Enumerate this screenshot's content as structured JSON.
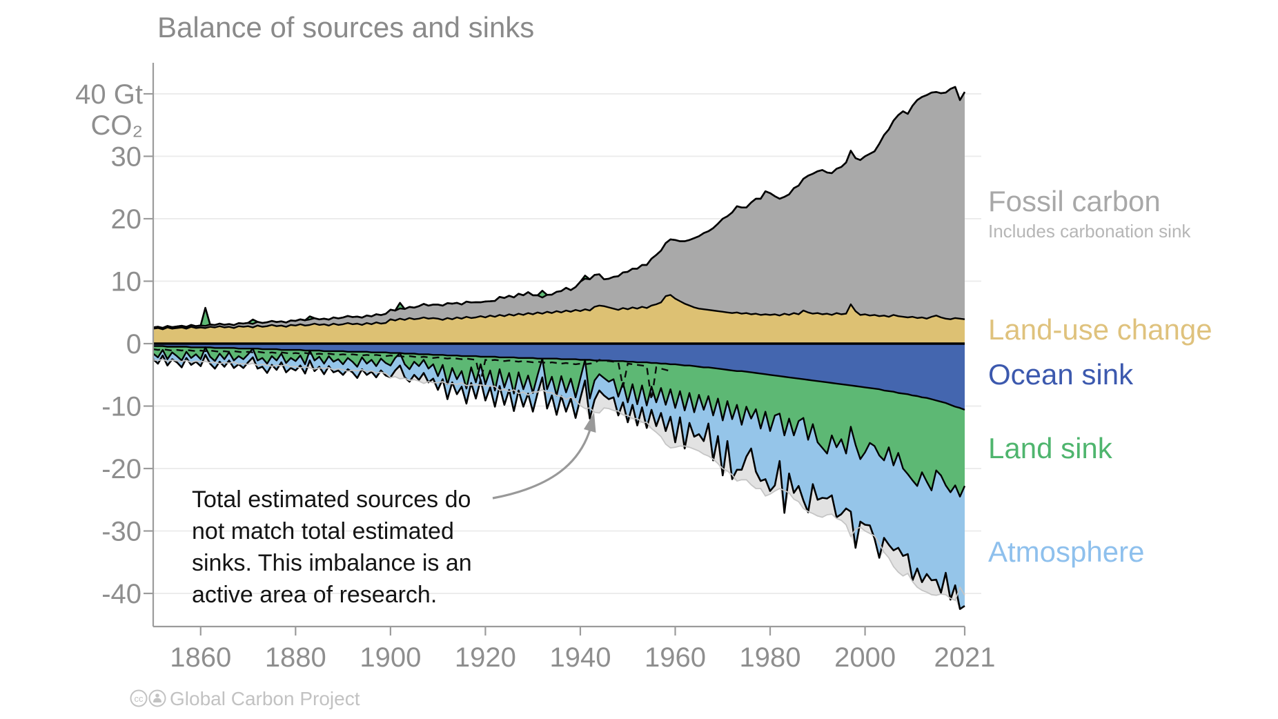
{
  "chart_data": {
    "type": "area",
    "title": "Balance of sources and sinks",
    "footer": "Global Carbon Project",
    "footer_license_icons": [
      "cc-icon",
      "by-person-icon"
    ],
    "x_axis": {
      "start_year": 1850,
      "end_year": 2021,
      "ticks": [
        "1860",
        "1880",
        "1900",
        "1920",
        "1940",
        "1960",
        "1980",
        "2000",
        "2021"
      ],
      "tick_years": [
        1860,
        1880,
        1900,
        1920,
        1940,
        1960,
        1980,
        2000,
        2021
      ]
    },
    "y_axis": {
      "unit_top_label": "40 Gt",
      "unit_bottom_label": "CO₂",
      "ticks": [
        40,
        30,
        20,
        10,
        0,
        -10,
        -20,
        -30,
        -40
      ],
      "range_shown": [
        -45,
        45
      ],
      "grid": true
    },
    "annotation": {
      "lines": [
        "Total estimated sources do",
        "not match total estimated",
        "sinks. This imbalance is an",
        "active area of research."
      ]
    },
    "legend": {
      "fossil_label": "Fossil carbon",
      "fossil_sub": "Includes carbonation sink",
      "land_use_label": "Land-use change",
      "ocean_label": "Ocean sink",
      "land_label": "Land sink",
      "atmosphere_label": "Atmosphere"
    },
    "colors": {
      "fossil": "#a9a9a9",
      "land_use": "#ddc173",
      "ocean": "#4466af",
      "land": "#5db874",
      "atmosphere": "#95c5e9",
      "imbalance": "#e2e2e2",
      "outline": "#000000",
      "zero_line": "#000000",
      "source_mirror_line": "#c5c5c5",
      "grid": "#ececec",
      "axis": "#9b9b9b",
      "tick_label": "#8e8e8e",
      "title": "#8a8a8a",
      "annotation": "#141414",
      "arrow": "#999999",
      "footer": "#c2c2c2",
      "legend_fossil": "#a8a8a8",
      "legend_sub": "#b6b6b6",
      "legend_land_use": "#dfc27d",
      "legend_ocean": "#3c59ae",
      "legend_land": "#4fb56e",
      "legend_atmosphere": "#8ec0ed"
    },
    "notes": "Sources plotted above zero (land-use change, fossil carbon); sinks below zero (ocean, land, atmosphere), all GtCO2 per year. Negative land values are land-source years drawn as green spikes above the stack. Dashed line = atmospheric growth from ice cores, pre-1959. Thin pale line mirrors total sources; pale grey fill = budget imbalance.",
    "series": {
      "fossil": [
        0.2,
        0.21,
        0.22,
        0.23,
        0.24,
        0.25,
        0.26,
        0.28,
        0.29,
        0.3,
        0.32,
        0.34,
        0.36,
        0.38,
        0.4,
        0.42,
        0.44,
        0.46,
        0.48,
        0.51,
        0.53,
        0.56,
        0.59,
        0.62,
        0.63,
        0.64,
        0.66,
        0.67,
        0.68,
        0.71,
        0.75,
        0.79,
        0.83,
        0.87,
        0.88,
        0.88,
        0.9,
        0.95,
        1.0,
        1.04,
        1.09,
        1.13,
        1.15,
        1.13,
        1.17,
        1.21,
        1.26,
        1.31,
        1.38,
        1.47,
        1.54,
        1.59,
        1.63,
        1.75,
        1.78,
        1.87,
        2.0,
        2.16,
        2.09,
        2.15,
        2.25,
        2.29,
        2.39,
        2.5,
        2.33,
        2.27,
        2.43,
        2.5,
        2.43,
        2.22,
        2.55,
        2.28,
        2.54,
        2.88,
        2.92,
        2.97,
        2.9,
        3.19,
        3.15,
        3.34,
        3.05,
        2.75,
        2.58,
        2.71,
        2.95,
        3.1,
        3.42,
        3.64,
        3.47,
        3.66,
        4.7,
        4.9,
        5.0,
        5.1,
        5.0,
        4.3,
        4.6,
        5.1,
        5.4,
        5.7,
        6.0,
        6.2,
        6.4,
        6.7,
        6.9,
        7.5,
        7.9,
        8.3,
        8.5,
        8.9,
        9.4,
        9.6,
        10.0,
        10.5,
        11.1,
        11.6,
        12.2,
        12.6,
        13.2,
        14.0,
        14.9,
        15.4,
        16.1,
        17.0,
        17.0,
        16.9,
        17.9,
        18.4,
        18.6,
        19.7,
        19.5,
        18.9,
        18.7,
        18.7,
        19.3,
        20.0,
        20.6,
        21.1,
        21.9,
        22.4,
        22.7,
        23.1,
        22.6,
        22.7,
        23.1,
        23.6,
        24.2,
        24.6,
        24.5,
        24.8,
        25.3,
        25.9,
        26.2,
        27.6,
        28.9,
        30.0,
        31.1,
        32.2,
        32.9,
        32.6,
        33.8,
        34.9,
        35.3,
        35.8,
        35.9,
        35.8,
        35.9,
        36.2,
        36.9,
        37.0,
        35.0,
        36.4
      ],
      "land_use": [
        2.4,
        2.5,
        2.3,
        2.6,
        2.4,
        2.5,
        2.6,
        2.4,
        2.7,
        2.5,
        2.6,
        2.5,
        2.7,
        2.6,
        2.8,
        2.6,
        2.7,
        2.5,
        2.8,
        2.7,
        2.8,
        2.6,
        2.9,
        2.7,
        2.8,
        3.0,
        2.8,
        2.9,
        2.7,
        3.0,
        2.9,
        3.1,
        2.9,
        3.0,
        3.2,
        3.0,
        3.1,
        2.9,
        3.2,
        3.0,
        3.1,
        3.3,
        3.1,
        3.2,
        3.0,
        3.3,
        3.1,
        3.4,
        3.2,
        3.3,
        3.9,
        3.7,
        4.0,
        3.8,
        4.1,
        3.9,
        4.0,
        4.2,
        4.0,
        4.1,
        4.0,
        3.8,
        4.1,
        3.9,
        4.2,
        4.0,
        4.3,
        4.1,
        4.2,
        4.4,
        4.2,
        4.5,
        4.3,
        4.6,
        4.4,
        4.7,
        4.5,
        4.8,
        4.6,
        4.9,
        4.7,
        5.0,
        4.8,
        5.1,
        4.9,
        5.2,
        5.0,
        5.3,
        5.1,
        5.4,
        5.2,
        5.5,
        5.3,
        5.9,
        6.1,
        6.0,
        5.8,
        5.6,
        5.4,
        5.7,
        5.5,
        5.8,
        5.6,
        5.9,
        5.7,
        6.1,
        6.3,
        6.6,
        7.6,
        7.8,
        7.2,
        6.8,
        6.4,
        6.1,
        5.8,
        5.6,
        5.5,
        5.4,
        5.3,
        5.2,
        5.1,
        5.0,
        4.9,
        5.0,
        4.8,
        4.9,
        4.7,
        4.8,
        4.6,
        4.7,
        4.6,
        4.7,
        4.5,
        4.8,
        4.6,
        4.9,
        4.7,
        5.3,
        5.0,
        4.8,
        4.9,
        4.7,
        4.8,
        4.6,
        4.9,
        4.7,
        4.8,
        6.3,
        5.2,
        4.6,
        4.7,
        4.5,
        4.6,
        4.4,
        4.5,
        4.3,
        4.6,
        4.4,
        4.3,
        4.2,
        4.3,
        4.1,
        4.2,
        4.0,
        4.3,
        4.5,
        4.2,
        4.0,
        3.9,
        4.1,
        4.0,
        3.9
      ],
      "ocean": [
        0.4,
        0.4,
        0.4,
        0.5,
        0.5,
        0.5,
        0.5,
        0.5,
        0.6,
        0.6,
        0.6,
        0.6,
        0.6,
        0.7,
        0.7,
        0.7,
        0.7,
        0.7,
        0.8,
        0.8,
        0.8,
        0.8,
        0.8,
        0.9,
        0.9,
        0.9,
        0.9,
        1.0,
        1.0,
        1.0,
        1.0,
        1.0,
        1.1,
        1.1,
        1.1,
        1.1,
        1.2,
        1.2,
        1.2,
        1.2,
        1.2,
        1.3,
        1.3,
        1.3,
        1.3,
        1.3,
        1.4,
        1.4,
        1.4,
        1.4,
        1.5,
        1.5,
        1.5,
        1.6,
        1.6,
        1.6,
        1.7,
        1.7,
        1.7,
        1.8,
        1.8,
        1.8,
        1.9,
        1.9,
        1.9,
        2.0,
        2.0,
        2.0,
        2.0,
        2.1,
        2.1,
        2.1,
        2.1,
        2.2,
        2.2,
        2.2,
        2.2,
        2.3,
        2.3,
        2.3,
        2.3,
        2.4,
        2.4,
        2.4,
        2.4,
        2.4,
        2.5,
        2.5,
        2.5,
        2.5,
        2.6,
        2.6,
        2.6,
        2.7,
        2.7,
        2.7,
        2.7,
        2.8,
        2.8,
        2.8,
        2.9,
        2.9,
        3.0,
        3.0,
        3.0,
        3.1,
        3.1,
        3.2,
        3.2,
        3.3,
        3.3,
        3.4,
        3.5,
        3.5,
        3.6,
        3.7,
        3.8,
        3.8,
        3.9,
        4.0,
        4.1,
        4.2,
        4.3,
        4.4,
        4.4,
        4.5,
        4.6,
        4.7,
        4.8,
        4.9,
        5.0,
        5.1,
        5.2,
        5.3,
        5.4,
        5.5,
        5.6,
        5.7,
        5.8,
        5.9,
        6.0,
        6.1,
        6.2,
        6.3,
        6.4,
        6.5,
        6.6,
        6.7,
        6.8,
        6.9,
        7.0,
        7.1,
        7.2,
        7.3,
        7.5,
        7.6,
        7.7,
        7.9,
        8.0,
        8.1,
        8.3,
        8.4,
        8.6,
        8.7,
        8.9,
        9.1,
        9.3,
        9.5,
        9.8,
        10.1,
        10.3,
        10.6
      ],
      "land": [
        1.2,
        1.8,
        0.6,
        2.0,
        0.9,
        1.5,
        2.2,
        0.8,
        1.7,
        1.1,
        1.9,
        -2.9,
        1.5,
        2.1,
        0.9,
        1.8,
        0.7,
        2.0,
        1.2,
        1.7,
        0.9,
        -0.7,
        1.9,
        1.4,
        2.3,
        1.1,
        1.8,
        0.6,
        2.1,
        1.3,
        1.8,
        0.9,
        2.2,
        -0.5,
        1.6,
        1.0,
        2.0,
        0.8,
        1.7,
        1.3,
        2.1,
        1.0,
        1.6,
        2.4,
        0.9,
        1.9,
        1.2,
        2.2,
        1.0,
        1.7,
        2.0,
        0.8,
        -0.9,
        1.7,
        2.5,
        1.3,
        1.9,
        0.9,
        2.3,
        1.5,
        3.4,
        1.6,
        4.6,
        2.0,
        3.8,
        2.4,
        5.2,
        1.8,
        4.2,
        1.2,
        4.4,
        2.2,
        5.4,
        1.9,
        4.8,
        2.5,
        5.8,
        2.3,
        5.0,
        2.8,
        5.6,
        2.6,
        -1.1,
        4.9,
        2.9,
        5.9,
        2.7,
        5.3,
        3.1,
        6.1,
        3.0,
        -0.5,
        6.2,
        3.2,
        2.2,
        2.8,
        3.4,
        2.9,
        5.7,
        3.5,
        6.5,
        3.6,
        6.7,
        3.7,
        6.9,
        3.8,
        6.3,
        3.9,
        6.6,
        4.0,
        7.0,
        4.2,
        7.2,
        4.4,
        7.4,
        4.5,
        6.8,
        4.6,
        7.6,
        4.8,
        8.2,
        5.0,
        7.8,
        5.4,
        8.6,
        5.6,
        7.4,
        5.8,
        8.8,
        6.0,
        9.0,
        6.4,
        6.0,
        9.4,
        6.6,
        9.2,
        6.8,
        6.2,
        9.6,
        7.0,
        9.8,
        10.6,
        11.4,
        8.4,
        10.2,
        8.8,
        11.0,
        6.6,
        9.4,
        11.6,
        10.4,
        8.8,
        9.2,
        10.6,
        11.2,
        9.0,
        11.8,
        9.6,
        12.0,
        12.8,
        13.6,
        14.4,
        12.0,
        13.4,
        14.6,
        11.2,
        11.8,
        13.2,
        14.0,
        12.6,
        14.2,
        12.2
      ],
      "atmosphere": [
        0.9,
        1.0,
        0.9,
        1.0,
        1.1,
        1.0,
        1.1,
        1.0,
        1.1,
        1.2,
        1.1,
        1.2,
        1.1,
        1.2,
        1.3,
        1.2,
        1.3,
        1.2,
        1.3,
        1.4,
        1.3,
        1.4,
        1.3,
        1.4,
        1.5,
        1.4,
        1.5,
        1.4,
        1.5,
        1.6,
        1.5,
        1.6,
        1.5,
        1.6,
        1.7,
        1.6,
        1.7,
        1.6,
        1.7,
        1.8,
        1.7,
        1.8,
        1.7,
        1.8,
        1.9,
        1.8,
        1.9,
        1.8,
        1.9,
        2.0,
        1.9,
        2.0,
        2.0,
        2.1,
        2.0,
        2.1,
        2.2,
        2.1,
        2.2,
        2.3,
        2.2,
        2.3,
        2.4,
        2.3,
        2.4,
        2.5,
        2.4,
        2.5,
        2.6,
        2.5,
        2.6,
        2.7,
        2.6,
        2.7,
        2.8,
        2.7,
        2.8,
        2.9,
        2.8,
        2.9,
        3.0,
        2.9,
        3.0,
        3.1,
        3.0,
        3.1,
        3.2,
        3.1,
        3.2,
        3.3,
        3.2,
        3.3,
        3.2,
        3.1,
        2.6,
        2.8,
        2.8,
        2.9,
        3.0,
        3.1,
        3.2,
        3.3,
        3.4,
        3.5,
        3.6,
        3.7,
        3.8,
        4.0,
        4.2,
        4.4,
        5.5,
        4.2,
        6.1,
        4.8,
        3.9,
        6.3,
        5.0,
        4.4,
        7.2,
        6.0,
        8.8,
        6.4,
        9.6,
        10.4,
        7.2,
        8.0,
        4.8,
        10.0,
        8.4,
        10.8,
        9.6,
        11.2,
        7.6,
        12.4,
        8.8,
        9.2,
        10.4,
        13.2,
        11.6,
        9.6,
        9.2,
        8.0,
        7.2,
        9.6,
        11.2,
        12.0,
        8.8,
        13.6,
        16.5,
        10.0,
        11.6,
        13.2,
        14.8,
        16.4,
        12.4,
        15.6,
        13.6,
        15.2,
        14.0,
        12.8,
        16.0,
        13.2,
        17.6,
        14.8,
        14.4,
        17.5,
        18.8,
        14.0,
        17.2,
        16.0,
        18.0,
        19.2
      ]
    },
    "ice_core_dashed": {
      "end_year": 1959,
      "dips": {
        "1919": 6.0,
        "1949": 7.0,
        "1955": 9.0
      }
    }
  }
}
